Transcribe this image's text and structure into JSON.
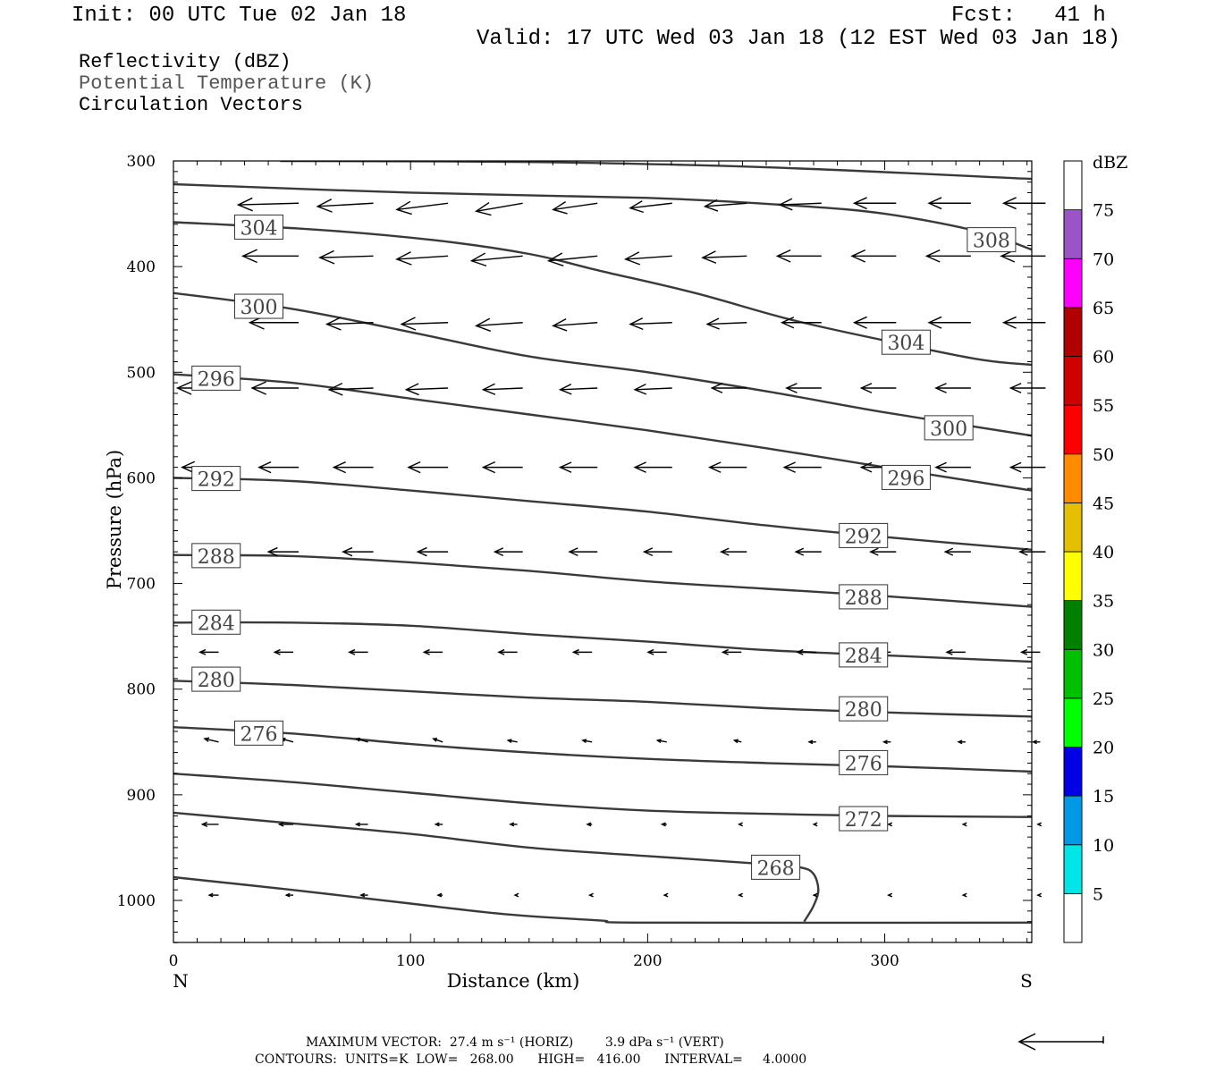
{
  "header": {
    "init": "Init: 00 UTC Tue 02 Jan 18",
    "fcst": "Fcst:   41 h",
    "valid": "Valid: 17 UTC Wed 03 Jan 18 (12 EST Wed 03 Jan 18)",
    "field1": "Reflectivity (dBZ)",
    "field2": "Potential Temperature (K)",
    "field3": "Circulation Vectors"
  },
  "footer": {
    "line1": "MAXIMUM VECTOR:  27.4 m s⁻¹ (HORIZ)        3.9 dPa s⁻¹ (VERT)",
    "line2": "CONTOURS:  UNITS=K  LOW=   268.00      HIGH=   416.00      INTERVAL=     4.0000"
  },
  "colors": {
    "contour": "#3a3a3a",
    "axis": "#000000",
    "colorbar": [
      "#ffffff",
      "#00e5e5",
      "#0099e5",
      "#0000e5",
      "#00ff00",
      "#00c000",
      "#008000",
      "#ffff00",
      "#e5c000",
      "#ff8c00",
      "#ff0000",
      "#d00000",
      "#b00000",
      "#ff00ff",
      "#9955c8",
      "#ffffff"
    ]
  },
  "chart_data": {
    "type": "contour-cross-section",
    "xlabel": "Distance (km)",
    "ylabel": "Pressure (hPa)",
    "xlim": [
      0,
      362
    ],
    "ylim": [
      1040,
      300
    ],
    "x_ticks": [
      "0",
      "100",
      "200",
      "300"
    ],
    "y_ticks": [
      "300",
      "400",
      "500",
      "600",
      "700",
      "800",
      "900",
      "1000"
    ],
    "x_left_label": "N",
    "x_right_label": "S",
    "colorbar": {
      "title": "dBZ",
      "labels": [
        "5",
        "10",
        "15",
        "20",
        "25",
        "30",
        "35",
        "40",
        "45",
        "50",
        "55",
        "60",
        "65",
        "70",
        "75"
      ]
    },
    "isentropes": [
      {
        "theta": 308,
        "label": "308",
        "points": [
          [
            45,
            300
          ],
          [
            150,
            301
          ],
          [
            250,
            306
          ],
          [
            362,
            317
          ]
        ]
      },
      {
        "theta": 308,
        "label": "308",
        "points": [
          [
            0,
            322
          ],
          [
            100,
            330
          ],
          [
            200,
            335
          ],
          [
            260,
            342
          ],
          [
            300,
            350
          ],
          [
            340,
            367
          ],
          [
            362,
            384
          ]
        ],
        "label_at": [
          345,
          375
        ]
      },
      {
        "theta": 304,
        "label": "304",
        "points": [
          [
            0,
            358
          ],
          [
            60,
            365
          ],
          [
            110,
            375
          ],
          [
            150,
            388
          ],
          [
            180,
            404
          ],
          [
            220,
            425
          ],
          [
            260,
            450
          ],
          [
            300,
            470
          ],
          [
            340,
            488
          ],
          [
            362,
            493
          ]
        ],
        "label_at": [
          36,
          363
        ]
      },
      {
        "theta": 304,
        "label": "304",
        "label_at": [
          309,
          472
        ]
      },
      {
        "theta": 300,
        "label": "300",
        "points": [
          [
            0,
            425
          ],
          [
            50,
            440
          ],
          [
            100,
            462
          ],
          [
            150,
            485
          ],
          [
            200,
            500
          ],
          [
            250,
            518
          ],
          [
            300,
            538
          ],
          [
            362,
            560
          ]
        ],
        "label_at": [
          36,
          438
        ],
        "label_at2": [
          327,
          553
        ]
      },
      {
        "theta": 296,
        "label": "296",
        "points": [
          [
            0,
            502
          ],
          [
            50,
            510
          ],
          [
            100,
            525
          ],
          [
            150,
            540
          ],
          [
            200,
            555
          ],
          [
            250,
            572
          ],
          [
            300,
            590
          ],
          [
            362,
            612
          ]
        ],
        "label_at": [
          18,
          506
        ],
        "label_at2": [
          309,
          600
        ]
      },
      {
        "theta": 292,
        "label": "292",
        "points": [
          [
            0,
            600
          ],
          [
            50,
            603
          ],
          [
            100,
            612
          ],
          [
            150,
            622
          ],
          [
            200,
            632
          ],
          [
            250,
            645
          ],
          [
            300,
            656
          ],
          [
            362,
            668
          ]
        ],
        "label_at": [
          18,
          601
        ],
        "label_at2": [
          291,
          655
        ]
      },
      {
        "theta": 288,
        "label": "288",
        "points": [
          [
            0,
            673
          ],
          [
            50,
            674
          ],
          [
            100,
            680
          ],
          [
            150,
            688
          ],
          [
            200,
            698
          ],
          [
            250,
            705
          ],
          [
            300,
            712
          ],
          [
            362,
            722
          ]
        ],
        "label_at": [
          18,
          674
        ],
        "label_at2": [
          291,
          713
        ]
      },
      {
        "theta": 284,
        "label": "284",
        "points": [
          [
            0,
            737
          ],
          [
            50,
            737
          ],
          [
            100,
            740
          ],
          [
            150,
            748
          ],
          [
            200,
            755
          ],
          [
            250,
            763
          ],
          [
            300,
            768
          ],
          [
            362,
            774
          ]
        ],
        "label_at": [
          18,
          737
        ],
        "label_at2": [
          291,
          768
        ]
      },
      {
        "theta": 280,
        "label": "280",
        "points": [
          [
            0,
            792
          ],
          [
            50,
            796
          ],
          [
            100,
            802
          ],
          [
            150,
            808
          ],
          [
            200,
            812
          ],
          [
            250,
            818
          ],
          [
            300,
            822
          ],
          [
            362,
            826
          ]
        ],
        "label_at": [
          18,
          791
        ],
        "label_at2": [
          291,
          819
        ]
      },
      {
        "theta": 276,
        "label": "276",
        "points": [
          [
            0,
            836
          ],
          [
            50,
            842
          ],
          [
            100,
            852
          ],
          [
            150,
            860
          ],
          [
            200,
            866
          ],
          [
            250,
            870
          ],
          [
            300,
            873
          ],
          [
            362,
            878
          ]
        ],
        "label_at": [
          36,
          842
        ],
        "label_at2": [
          291,
          870
        ]
      },
      {
        "theta": 272,
        "label": "272",
        "points": [
          [
            0,
            880
          ],
          [
            50,
            888
          ],
          [
            100,
            898
          ],
          [
            150,
            908
          ],
          [
            200,
            915
          ],
          [
            250,
            918
          ],
          [
            300,
            920
          ],
          [
            362,
            921
          ]
        ],
        "label_at": [
          291,
          923
        ]
      },
      {
        "theta": 268,
        "label": "268",
        "points": [
          [
            0,
            917
          ],
          [
            50,
            927
          ],
          [
            100,
            937
          ],
          [
            150,
            950
          ],
          [
            200,
            958
          ],
          [
            252,
            966
          ],
          [
            265,
            969
          ],
          [
            270,
            975
          ],
          [
            272,
            990
          ],
          [
            270,
            1005
          ],
          [
            266,
            1020
          ]
        ],
        "label_at": [
          254,
          969
        ]
      },
      {
        "theta": 268,
        "label": "",
        "points": [
          [
            0,
            978
          ],
          [
            50,
            990
          ],
          [
            100,
            1003
          ],
          [
            140,
            1013
          ],
          [
            180,
            1019
          ],
          [
            200,
            1021
          ],
          [
            362,
            1021
          ]
        ]
      }
    ],
    "vectors": [
      {
        "p": 340,
        "u": [
          -28,
          -26,
          -24,
          -22,
          -20,
          -19,
          -18,
          -18,
          -18,
          -18,
          -18,
          -18
        ],
        "w": [
          0,
          -0.1,
          -0.2,
          -0.4,
          -0.5,
          -0.4,
          -0.3,
          -0.2,
          -0.1,
          0,
          0,
          0
        ]
      },
      {
        "p": 390,
        "u": [
          -25,
          -24,
          -23,
          -22,
          -22,
          -21,
          -20,
          -19,
          -19,
          -19,
          -19,
          -19
        ],
        "w": [
          0,
          0,
          -0.1,
          -0.2,
          -0.3,
          -0.3,
          -0.2,
          -0.1,
          0,
          0,
          0,
          0
        ]
      },
      {
        "p": 453,
        "u": [
          -22,
          -21,
          -20,
          -20,
          -20,
          -19,
          -18,
          -17,
          -17,
          -18,
          -18,
          -18
        ],
        "w": [
          0,
          0,
          -0.1,
          -0.1,
          -0.2,
          -0.2,
          -0.1,
          -0.1,
          0,
          0,
          0,
          0
        ]
      },
      {
        "p": 515,
        "u": [
          -20,
          -20,
          -19,
          -18,
          -17,
          -16,
          -16,
          -15,
          -15,
          -15,
          -15,
          -15
        ],
        "w": [
          0,
          0,
          -0.1,
          -0.1,
          -0.1,
          -0.1,
          -0.1,
          0,
          0,
          0,
          0,
          0
        ]
      },
      {
        "p": 590,
        "u": [
          -18,
          -17,
          -17,
          -17,
          -17,
          -16,
          -16,
          -16,
          -16,
          -15,
          -15,
          -15
        ],
        "w": [
          0,
          0,
          0,
          0,
          0,
          0,
          0,
          0,
          0,
          0,
          0,
          0
        ]
      },
      {
        "p": 670,
        "u": [
          -13,
          -13,
          -13,
          -13,
          -12,
          -12,
          -12,
          -11,
          -11,
          -11,
          -11,
          -11
        ],
        "w": [
          0,
          0,
          0,
          0,
          0,
          0,
          0,
          0,
          0,
          0,
          0,
          0
        ]
      },
      {
        "p": 765,
        "u": [
          -8,
          -8,
          -8,
          -8,
          -8,
          -8,
          -8,
          -8,
          -8,
          -8,
          -8,
          -8
        ],
        "w": [
          0,
          0,
          0,
          0,
          0,
          0,
          0,
          0,
          0,
          0,
          0,
          0
        ]
      },
      {
        "p": 850,
        "u": [
          -6,
          -5,
          -5,
          -4,
          -4,
          -4,
          -4,
          -3,
          -3,
          -3,
          -3,
          -3
        ],
        "w": [
          0.2,
          0.2,
          0.2,
          0.2,
          0.1,
          0.1,
          0.1,
          0.1,
          0,
          0,
          0,
          0
        ]
      },
      {
        "p": 928,
        "u": [
          -7,
          -6,
          -5,
          -3,
          -3,
          -2,
          -2,
          -1,
          -1,
          -1,
          -1,
          -1
        ],
        "w": [
          0,
          0,
          0,
          0,
          0,
          0,
          0,
          0,
          0,
          0,
          0,
          0
        ]
      },
      {
        "p": 995,
        "u": [
          -4,
          -3,
          -3,
          -2,
          -1,
          -1,
          -1,
          -1,
          -1,
          -1,
          -1,
          -1
        ],
        "w": [
          0,
          0,
          0,
          0,
          0,
          0,
          0,
          0,
          0,
          0,
          0,
          0
        ]
      }
    ],
    "max_vector": {
      "horiz": 27.4,
      "vert": 3.9
    }
  }
}
